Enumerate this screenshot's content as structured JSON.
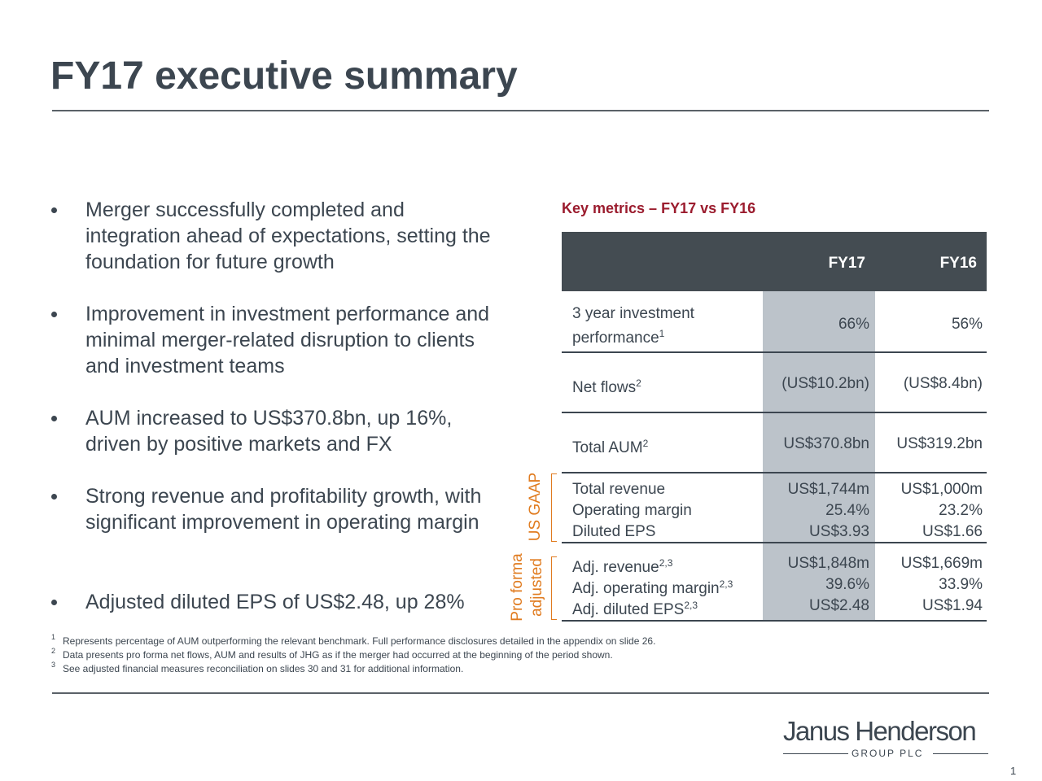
{
  "title": "FY17 executive summary",
  "bullets": [
    "Merger successfully completed and integration ahead of expectations, setting the foundation for future growth",
    "Improvement in investment performance and minimal merger-related disruption to clients and investment teams",
    "AUM increased to US$370.8bn, up 16%, driven by positive markets and FX",
    "Strong revenue and profitability growth, with significant improvement in operating margin",
    "Adjusted diluted EPS of US$2.48, up 28%"
  ],
  "table": {
    "caption": "Key metrics – FY17 vs FY16",
    "columns": [
      "FY17",
      "FY16"
    ],
    "rows": [
      {
        "label": "3 year investment performance",
        "note": "1",
        "fy17": "66%",
        "fy16": "56%"
      },
      {
        "label": "Net flows",
        "note": "2",
        "fy17": "(US$10.2bn)",
        "fy16": "(US$8.4bn)"
      },
      {
        "label": "Total AUM",
        "note": "2",
        "fy17": "US$370.8bn",
        "fy16": "US$319.2bn"
      },
      {
        "label": "Total revenue",
        "fy17": "US$1,744m",
        "fy16": "US$1,000m"
      },
      {
        "label": "Operating margin",
        "fy17": "25.4%",
        "fy16": "23.2%"
      },
      {
        "label": "Diluted EPS",
        "fy17": "US$3.93",
        "fy16": "US$1.66"
      },
      {
        "label": "Adj. revenue",
        "note": "2,3",
        "fy17": "US$1,848m",
        "fy16": "US$1,669m"
      },
      {
        "label": "Adj. operating margin",
        "note": "2,3",
        "fy17": "39.6%",
        "fy16": "33.9%"
      },
      {
        "label": "Adj. diluted EPS",
        "note": "2,3",
        "fy17": "US$2.48",
        "fy16": "US$1.94"
      }
    ],
    "groups": [
      {
        "lines": [
          "US GAAP"
        ]
      },
      {
        "lines": [
          "Pro forma",
          "adjusted"
        ]
      }
    ]
  },
  "footnotes": [
    {
      "mark": "1",
      "text": "Represents percentage of AUM outperforming the relevant benchmark. Full performance disclosures detailed in the appendix on slide 26."
    },
    {
      "mark": "2",
      "text": "Data presents pro forma net flows, AUM and results of JHG as if the merger had occurred at the beginning of the period shown."
    },
    {
      "mark": "3",
      "text": "See adjusted financial measures reconciliation on slides 30 and 31 for additional information."
    }
  ],
  "logo": {
    "name": "Janus Henderson",
    "subtitle": "GROUP PLC"
  },
  "page_number": "1"
}
